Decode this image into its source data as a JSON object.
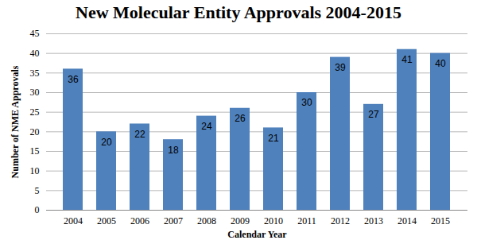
{
  "chart_data": {
    "type": "bar",
    "title": "New Molecular Entity Approvals 2004-2015",
    "x_label": "Calendar Year",
    "y_label": "Number of NME Approvals",
    "categories": [
      "2004",
      "2005",
      "2006",
      "2007",
      "2008",
      "2009",
      "2010",
      "2011",
      "2012",
      "2013",
      "2014",
      "2015"
    ],
    "values": [
      36,
      20,
      22,
      18,
      24,
      26,
      21,
      30,
      39,
      27,
      41,
      40
    ],
    "color": "#4F81BD",
    "ylim": [
      0,
      45
    ],
    "yticks": [
      0,
      5,
      10,
      15,
      20,
      25,
      30,
      35,
      40,
      45
    ],
    "grid": true,
    "data_labels": true
  }
}
